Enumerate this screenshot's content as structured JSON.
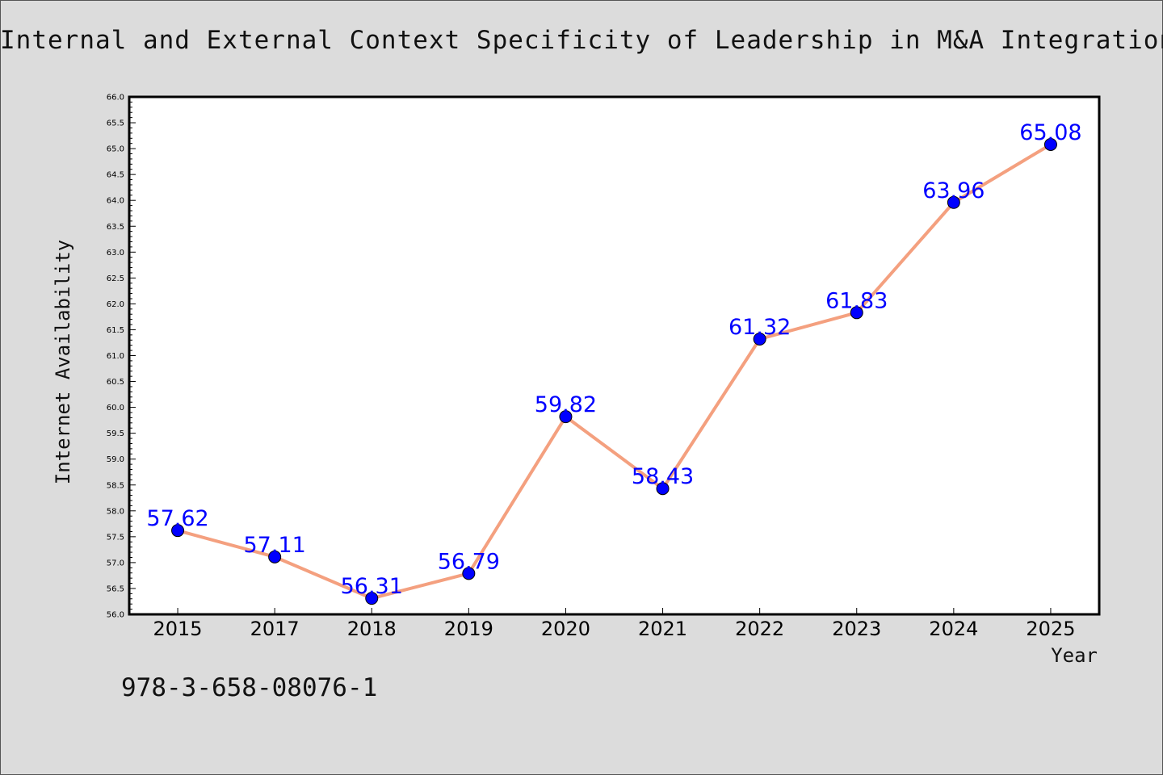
{
  "chart_data": {
    "type": "line",
    "title": "Internal and External Context Specificity of Leadership in M&A Integration",
    "xlabel": "Year",
    "ylabel": "Internet Availability",
    "categories": [
      "2015",
      "2017",
      "2018",
      "2019",
      "2020",
      "2021",
      "2022",
      "2023",
      "2024",
      "2025"
    ],
    "series": [
      {
        "values": [
          57.62,
          57.11,
          56.31,
          56.79,
          59.82,
          58.43,
          61.32,
          61.83,
          63.96,
          65.08
        ],
        "data_labels": [
          "57.62",
          "57.11",
          "56.31",
          "56.79",
          "59.82",
          "58.43",
          "61.32",
          "61.83",
          "63.96",
          "65.08"
        ]
      }
    ],
    "ylim": [
      56.0,
      66.0
    ],
    "y_tick_step": 0.5,
    "y_minor_step": 0.1,
    "y_ticks": [
      "56.0",
      "56.5",
      "57.0",
      "57.5",
      "58.0",
      "58.5",
      "59.0",
      "59.5",
      "60.0",
      "60.5",
      "61.0",
      "61.5",
      "62.0",
      "62.5",
      "63.0",
      "63.5",
      "64.0",
      "64.5",
      "65.0",
      "65.5",
      "66.0"
    ],
    "grid": false,
    "legend": "none",
    "colors": {
      "line": "#f4a07f",
      "marker": "#0000ff",
      "data_label": "#0000ff",
      "plot_background": "#ffffff",
      "page_background": "#dcdcdc"
    }
  },
  "annotation": "978-3-658-08076-1"
}
